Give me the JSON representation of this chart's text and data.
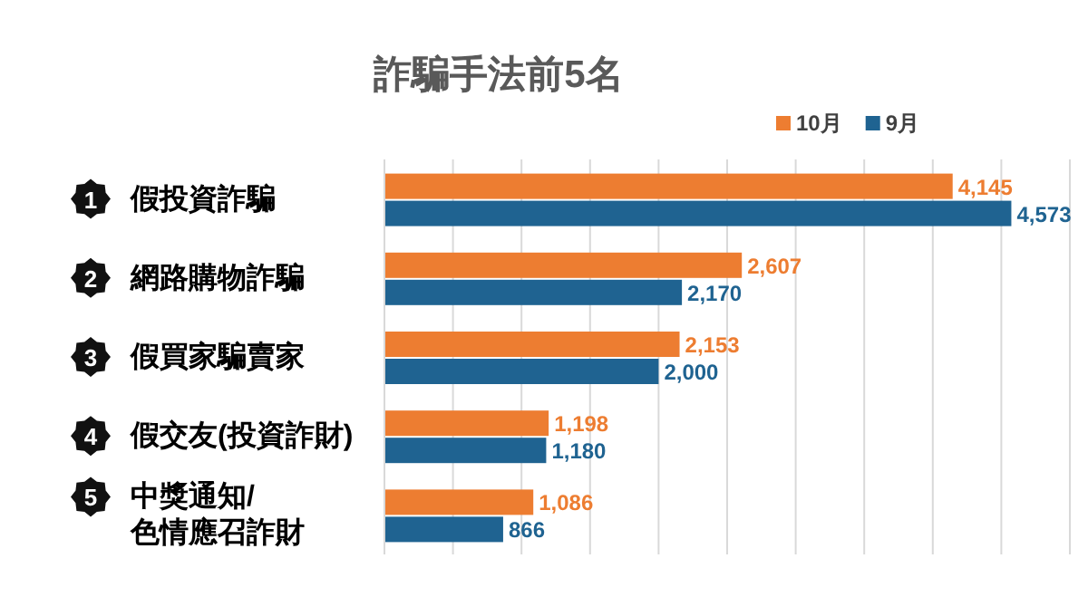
{
  "chart_data": {
    "type": "bar",
    "orientation": "horizontal",
    "title": "詐騙手法前5名",
    "categories": [
      "假投資詐騙",
      "網路購物詐騙",
      "假買家騙賣家",
      "假交友(投資詐財)",
      "中獎通知/\n色情應召詐財"
    ],
    "series": [
      {
        "name": "10月",
        "color": "#ed7d31",
        "values": [
          4145,
          2607,
          2153,
          1198,
          1086
        ],
        "value_labels": [
          "4,145",
          "2,607",
          "2,153",
          "1,198",
          "1,086"
        ]
      },
      {
        "name": "9月",
        "color": "#1f6391",
        "values": [
          4573,
          2170,
          2000,
          1180,
          866
        ],
        "value_labels": [
          "4,573",
          "2,170",
          "2,000",
          "1,180",
          "866"
        ]
      }
    ],
    "xlim": [
      0,
      5000
    ],
    "xticks": [
      {
        "value": 0,
        "label": null
      },
      {
        "value": 500,
        "label": null
      },
      {
        "value": 1000,
        "label": null
      },
      {
        "value": 1500,
        "label": null
      },
      {
        "value": 2000,
        "label": null
      },
      {
        "value": 2500,
        "label": null
      },
      {
        "value": 3000,
        "label": null
      },
      {
        "value": 3500,
        "label": null
      },
      {
        "value": 4000,
        "label": null
      },
      {
        "value": 4500,
        "label": null
      },
      {
        "value": 5000,
        "label": null
      }
    ],
    "grid": "x",
    "legend": "top right",
    "annotations": [
      "1",
      "2",
      "3",
      "4",
      "5"
    ]
  }
}
